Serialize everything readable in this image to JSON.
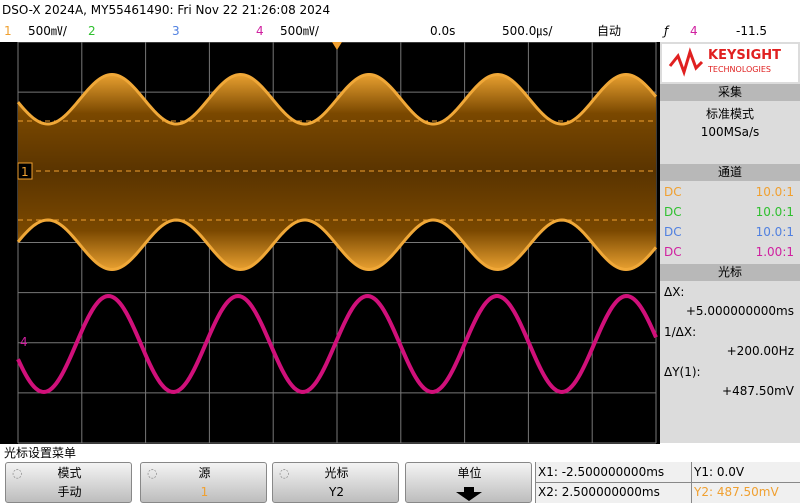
{
  "header": {
    "title": "DSO-X 2024A, MY55461490: Fri Nov 22 21:26:08 2024"
  },
  "status_bar": {
    "ch1": "1",
    "ch1_scale": "500㎷/",
    "ch2": "2",
    "ch3": "3",
    "ch4": "4",
    "ch4_scale": "500㎷/",
    "time_offset": "0.0s",
    "time_scale": "500.0㎲/",
    "trigger_mode": "自动",
    "trigger_source": "4",
    "trigger_level": "-11.5"
  },
  "screen": {
    "ch1_marker": "1",
    "ch4_marker": "4"
  },
  "side_panel": {
    "brand": "KEYSIGHT",
    "brand_sub": "TECHNOLOGIES",
    "acquisition": {
      "title": "采集",
      "mode": "标准模式",
      "rate": "100MSa/s"
    },
    "channels": {
      "title": "通道",
      "rows": [
        {
          "coupling": "DC",
          "probe": "10.0:1",
          "color": "#f0a030"
        },
        {
          "coupling": "DC",
          "probe": "10.0:1",
          "color": "#30c030"
        },
        {
          "coupling": "DC",
          "probe": "10.0:1",
          "color": "#5080e0"
        },
        {
          "coupling": "DC",
          "probe": "1.00:1",
          "color": "#d020a0"
        }
      ]
    },
    "cursors": {
      "title": "光标",
      "items": [
        {
          "label": "ΔX:",
          "value": "+5.000000000ms"
        },
        {
          "label": "1/ΔX:",
          "value": "+200.00Hz"
        },
        {
          "label": "ΔY(1):",
          "value": "+487.50mV"
        }
      ]
    }
  },
  "menu": {
    "title": "光标设置菜单",
    "buttons": [
      {
        "label": "模式",
        "value": "手动"
      },
      {
        "label": "源",
        "value": "1"
      },
      {
        "label": "光标",
        "value": "Y2"
      },
      {
        "label": "单位"
      }
    ],
    "readouts": [
      "X1: -2.500000000ms",
      "Y1: 0.0V",
      "X2: 2.500000000ms",
      "Y2: 487.50mV"
    ]
  }
}
